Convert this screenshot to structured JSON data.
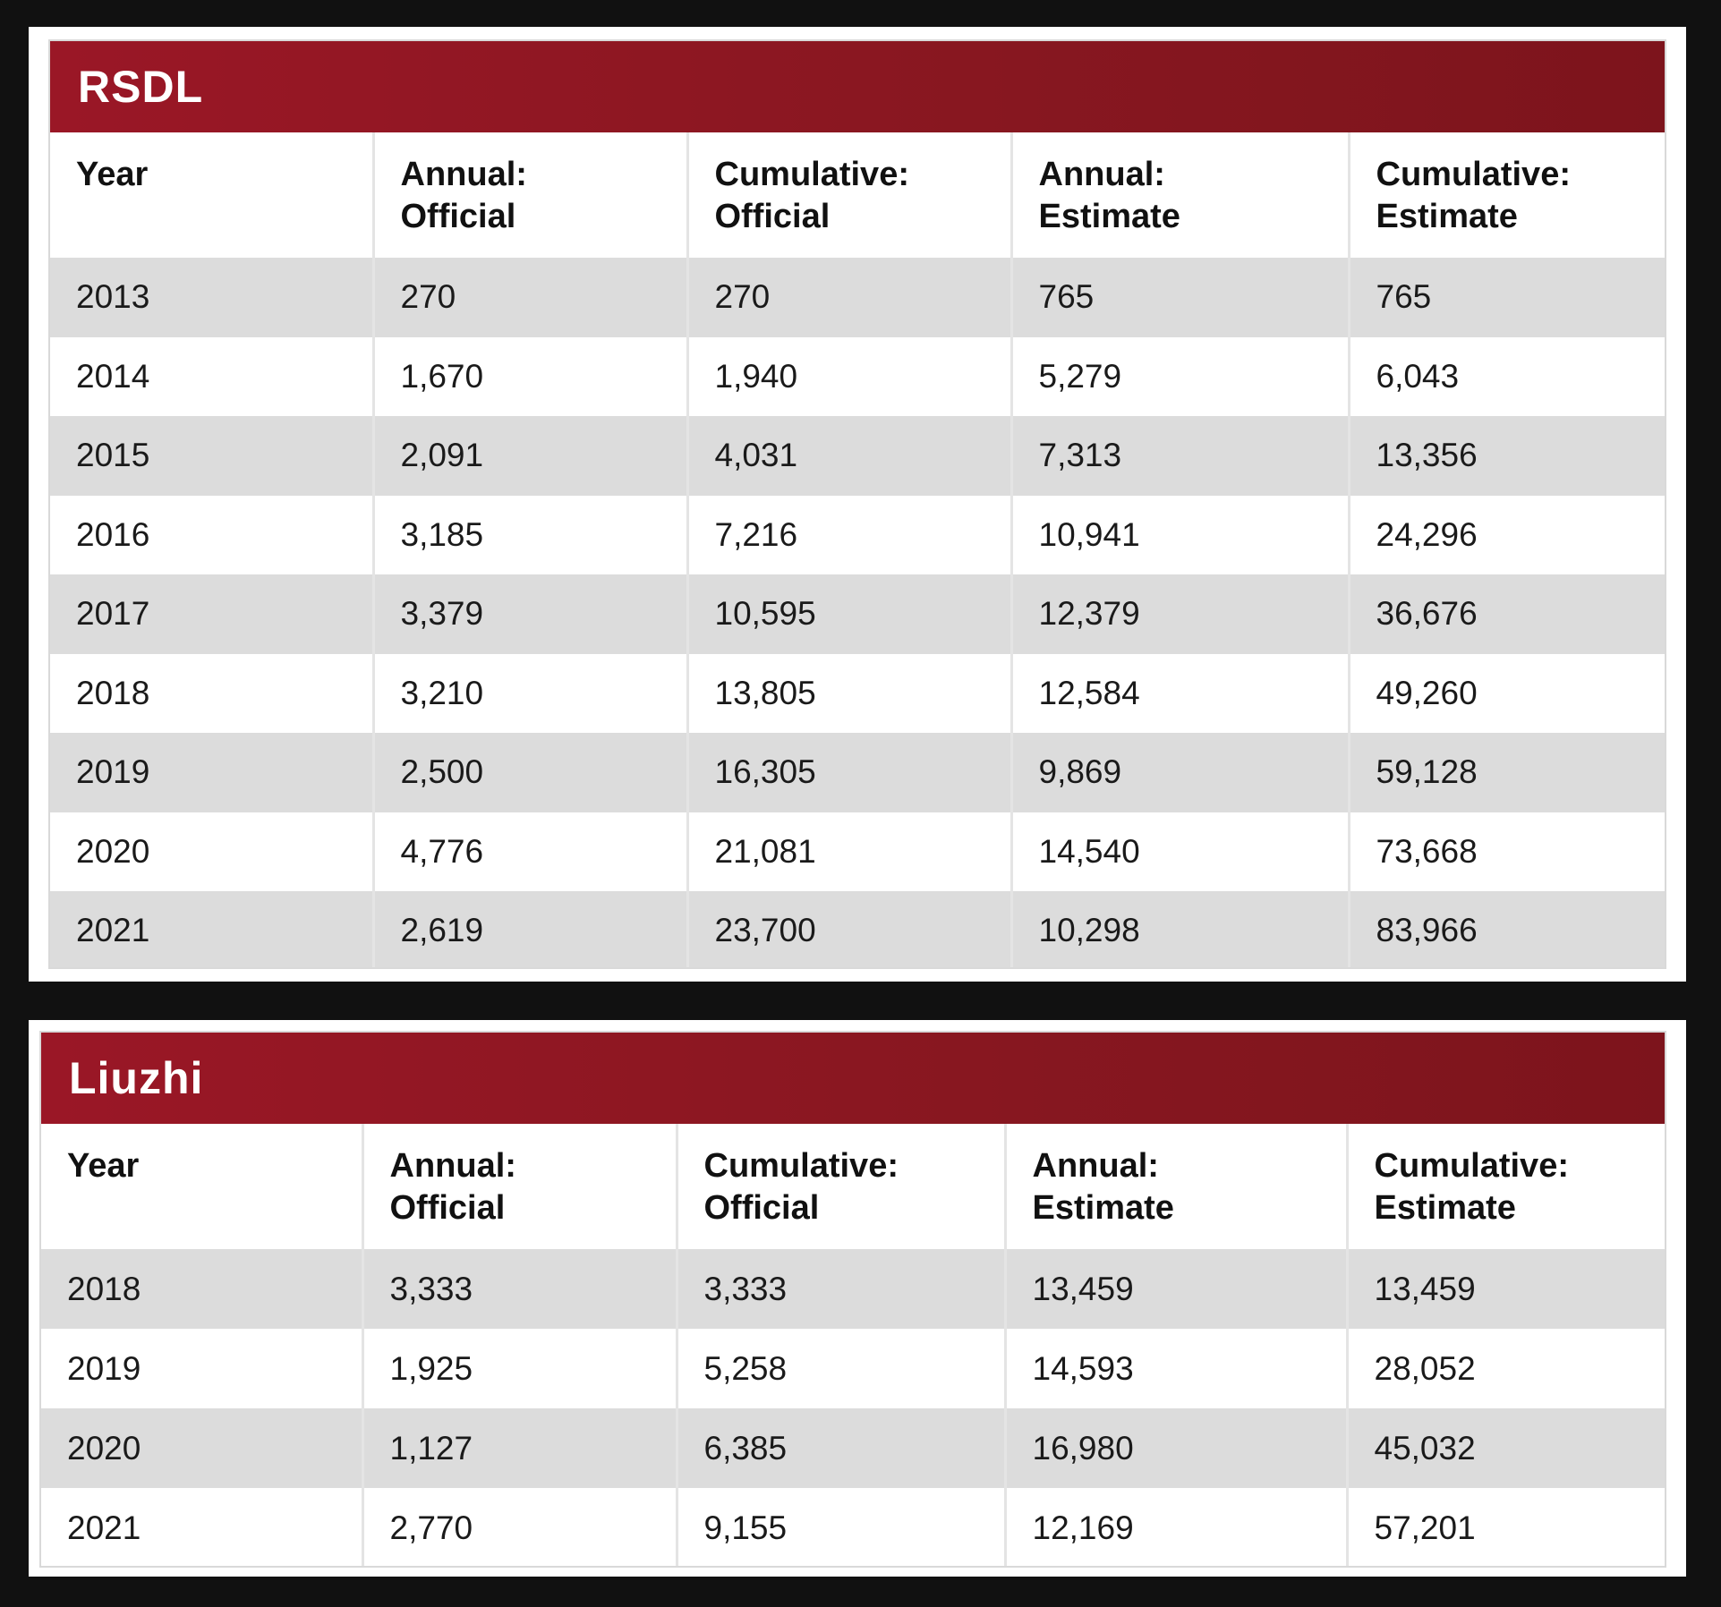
{
  "tables": [
    {
      "title": "RSDL",
      "headers": [
        [
          "Year",
          ""
        ],
        [
          "Annual:",
          "Official"
        ],
        [
          "Cumulative:",
          "Official"
        ],
        [
          "Annual:",
          "Estimate"
        ],
        [
          "Cumulative:",
          "Estimate"
        ]
      ],
      "rows": [
        [
          "2013",
          "270",
          "270",
          "765",
          "765"
        ],
        [
          "2014",
          "1,670",
          "1,940",
          "5,279",
          "6,043"
        ],
        [
          "2015",
          "2,091",
          "4,031",
          "7,313",
          "13,356"
        ],
        [
          "2016",
          "3,185",
          "7,216",
          "10,941",
          "24,296"
        ],
        [
          "2017",
          "3,379",
          "10,595",
          "12,379",
          "36,676"
        ],
        [
          "2018",
          "3,210",
          "13,805",
          "12,584",
          "49,260"
        ],
        [
          "2019",
          "2,500",
          "16,305",
          "9,869",
          "59,128"
        ],
        [
          "2020",
          "4,776",
          "21,081",
          "14,540",
          "73,668"
        ],
        [
          "2021",
          "2,619",
          "23,700",
          "10,298",
          "83,966"
        ]
      ]
    },
    {
      "title": "Liuzhi",
      "headers": [
        [
          "Year",
          ""
        ],
        [
          "Annual:",
          "Official"
        ],
        [
          "Cumulative:",
          "Official"
        ],
        [
          "Annual:",
          "Estimate"
        ],
        [
          "Cumulative:",
          "Estimate"
        ]
      ],
      "rows": [
        [
          "2018",
          "3,333",
          "3,333",
          "13,459",
          "13,459"
        ],
        [
          "2019",
          "1,925",
          "5,258",
          "14,593",
          "28,052"
        ],
        [
          "2020",
          "1,127",
          "6,385",
          "16,980",
          "45,032"
        ],
        [
          "2021",
          "2,770",
          "9,155",
          "12,169",
          "57,201"
        ]
      ]
    }
  ],
  "colors": {
    "title_bar": "#8c1722",
    "row_shade": "#dcdcdc",
    "background": "#111111"
  }
}
